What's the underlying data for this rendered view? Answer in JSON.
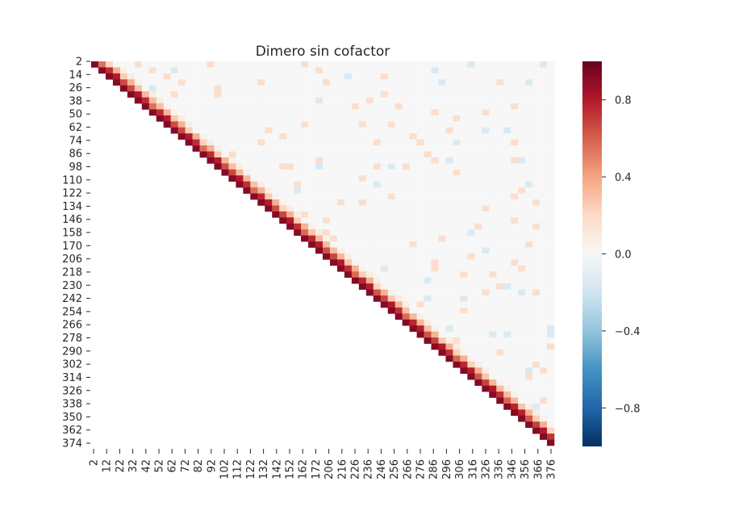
{
  "chart_data": {
    "type": "heatmap",
    "title": "Dimero sin cofactor",
    "x_tick_labels": [
      "2",
      "12",
      "22",
      "32",
      "42",
      "52",
      "62",
      "72",
      "82",
      "92",
      "102",
      "112",
      "122",
      "132",
      "142",
      "152",
      "162",
      "172",
      "206",
      "216",
      "226",
      "236",
      "246",
      "256",
      "266",
      "276",
      "286",
      "296",
      "306",
      "316",
      "326",
      "336",
      "346",
      "356",
      "366",
      "376"
    ],
    "y_tick_labels": [
      "2",
      "14",
      "26",
      "38",
      "50",
      "62",
      "74",
      "86",
      "98",
      "110",
      "122",
      "134",
      "146",
      "158",
      "170",
      "206",
      "218",
      "230",
      "242",
      "254",
      "266",
      "278",
      "290",
      "302",
      "314",
      "326",
      "338",
      "350",
      "362",
      "374"
    ],
    "mask": "lower-triangle",
    "colormap": "RdBu_r",
    "vmin": -1.0,
    "vmax": 1.0,
    "colorbar_ticks": [
      "0.8",
      "0.4",
      "0.0",
      "−0.4",
      "−0.8"
    ],
    "colorbar_tick_values": [
      0.8,
      0.4,
      0.0,
      -0.4,
      -0.8
    ],
    "background_value": 0.0,
    "grid": false,
    "colors": {
      "high": "#67001f",
      "mid": "#f7f7f7",
      "low": "#053061"
    }
  }
}
